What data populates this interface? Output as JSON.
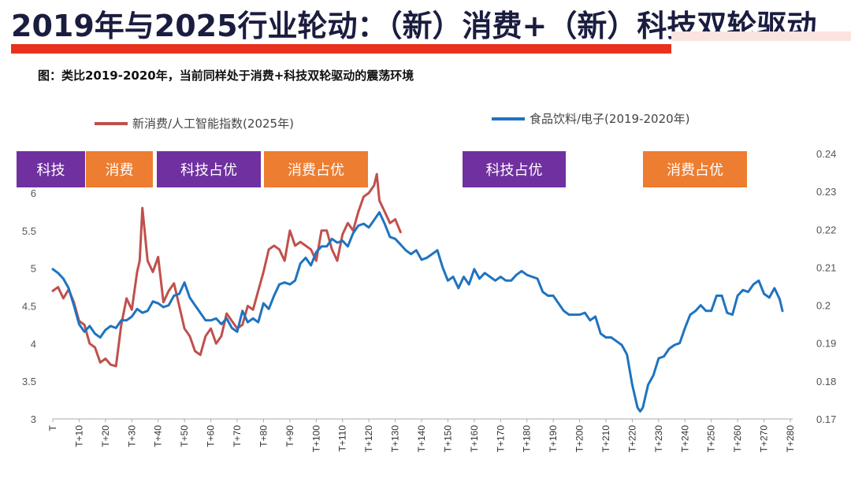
{
  "title": "2019年与2025行业轮动：（新）消费+（新）科技双轮驱动",
  "subtitle": "图：类比2019-2020年，当前同样处于消费+科技双轮驱动的震荡环境",
  "colors": {
    "series_new": "#c0504d",
    "series_old": "#1f73c0",
    "tech_badge": "#7030a0",
    "consumer_badge": "#ed7d31",
    "title_bar": "#e8321e"
  },
  "badges": [
    {
      "label": "科技",
      "kind": "tech"
    },
    {
      "label": "消费",
      "kind": "consumer"
    },
    {
      "label": "科技占优",
      "kind": "tech"
    },
    {
      "label": "消费占优",
      "kind": "consumer"
    },
    {
      "label": "科技占优",
      "kind": "tech"
    },
    {
      "label": "消费占优",
      "kind": "consumer"
    }
  ],
  "chart_data": {
    "type": "line",
    "title": "",
    "x_tick_labels": [
      "T",
      "T+10",
      "T+20",
      "T+30",
      "T+40",
      "T+50",
      "T+60",
      "T+70",
      "T+80",
      "T+90",
      "T+100",
      "T+110",
      "T+120",
      "T+130",
      "T+140",
      "T+150",
      "T+160",
      "T+170",
      "T+180",
      "T+190",
      "T+200",
      "T+210",
      "T+220",
      "T+230",
      "T+240",
      "T+250",
      "T+260",
      "T+270",
      "T+280"
    ],
    "xlim": [
      0,
      280
    ],
    "y_left": {
      "ticks": [
        "3",
        "3.5",
        "4",
        "4.5",
        "5",
        "5.5",
        "6"
      ],
      "ylim": [
        3,
        6.5
      ]
    },
    "y_right": {
      "ticks": [
        "0.17",
        "0.18",
        "0.19",
        "0.2",
        "0.21",
        "0.22",
        "0.23",
        "0.24"
      ],
      "ylim": [
        0.17,
        0.24
      ]
    },
    "legend": {
      "placement": "top"
    },
    "series": [
      {
        "name": "新消费/人工智能指数(2025年)",
        "axis": "left",
        "x": [
          0,
          2,
          4,
          6,
          8,
          10,
          12,
          14,
          16,
          18,
          20,
          22,
          24,
          26,
          28,
          30,
          32,
          33,
          34,
          36,
          38,
          40,
          42,
          44,
          46,
          48,
          50,
          52,
          54,
          56,
          58,
          60,
          62,
          64,
          66,
          68,
          70,
          72,
          74,
          76,
          78,
          80,
          82,
          84,
          86,
          88,
          90,
          92,
          94,
          96,
          98,
          100,
          102,
          104,
          106,
          108,
          110,
          112,
          114,
          116,
          118,
          120,
          122,
          123,
          124,
          126,
          128,
          130,
          132
        ],
        "y": [
          4.7,
          4.75,
          4.6,
          4.72,
          4.55,
          4.3,
          4.25,
          4.0,
          3.95,
          3.75,
          3.8,
          3.72,
          3.7,
          4.25,
          4.6,
          4.45,
          4.95,
          5.1,
          5.8,
          5.1,
          4.95,
          5.15,
          4.55,
          4.7,
          4.8,
          4.5,
          4.2,
          4.1,
          3.9,
          3.85,
          4.1,
          4.2,
          4.0,
          4.1,
          4.4,
          4.3,
          4.2,
          4.25,
          4.5,
          4.45,
          4.7,
          4.95,
          5.25,
          5.3,
          5.25,
          5.1,
          5.5,
          5.3,
          5.35,
          5.3,
          5.25,
          5.1,
          5.5,
          5.5,
          5.25,
          5.1,
          5.45,
          5.6,
          5.5,
          5.75,
          5.95,
          6.0,
          6.1,
          6.25,
          5.9,
          5.75,
          5.6,
          5.65,
          5.48
        ]
      },
      {
        "name": "食品饮料/电子(2019-2020年)",
        "axis": "right",
        "x": [
          0,
          2,
          4,
          6,
          8,
          10,
          12,
          14,
          16,
          18,
          20,
          22,
          24,
          26,
          28,
          30,
          32,
          34,
          36,
          38,
          40,
          42,
          44,
          46,
          48,
          50,
          52,
          54,
          56,
          58,
          60,
          62,
          64,
          66,
          68,
          70,
          72,
          74,
          76,
          78,
          80,
          82,
          84,
          86,
          88,
          90,
          92,
          94,
          96,
          98,
          100,
          102,
          104,
          106,
          108,
          110,
          112,
          114,
          116,
          118,
          120,
          122,
          124,
          126,
          128,
          130,
          132,
          134,
          136,
          138,
          140,
          142,
          144,
          146,
          148,
          150,
          152,
          154,
          156,
          158,
          160,
          162,
          164,
          166,
          168,
          170,
          172,
          174,
          176,
          178,
          180,
          182,
          184,
          186,
          188,
          190,
          192,
          194,
          196,
          198,
          200,
          202,
          204,
          206,
          208,
          210,
          212,
          214,
          216,
          218,
          220,
          222,
          223,
          224,
          226,
          228,
          230,
          232,
          234,
          236,
          238,
          240,
          242,
          244,
          246,
          248,
          250,
          252,
          254,
          256,
          258,
          260,
          262,
          264,
          266,
          268,
          270,
          272,
          274,
          276,
          277
        ],
        "y": [
          0.2095,
          0.2085,
          0.207,
          0.2045,
          0.2,
          0.195,
          0.193,
          0.1945,
          0.1925,
          0.1915,
          0.1935,
          0.1945,
          0.194,
          0.196,
          0.196,
          0.197,
          0.199,
          0.198,
          0.1985,
          0.201,
          0.2005,
          0.1995,
          0.2,
          0.2025,
          0.203,
          0.206,
          0.202,
          0.2,
          0.198,
          0.196,
          0.196,
          0.1965,
          0.195,
          0.1965,
          0.194,
          0.193,
          0.1985,
          0.1955,
          0.1965,
          0.1955,
          0.2005,
          0.199,
          0.2025,
          0.2055,
          0.206,
          0.2055,
          0.2065,
          0.211,
          0.2125,
          0.2105,
          0.214,
          0.2155,
          0.2155,
          0.2175,
          0.2165,
          0.217,
          0.2155,
          0.219,
          0.221,
          0.2215,
          0.2205,
          0.2225,
          0.2245,
          0.2215,
          0.218,
          0.2175,
          0.216,
          0.2145,
          0.2135,
          0.2145,
          0.212,
          0.2125,
          0.2135,
          0.2145,
          0.21,
          0.2065,
          0.2075,
          0.2045,
          0.2075,
          0.2055,
          0.2095,
          0.207,
          0.2085,
          0.2075,
          0.2065,
          0.2075,
          0.2065,
          0.2065,
          0.208,
          0.209,
          0.208,
          0.2075,
          0.207,
          0.2035,
          0.2025,
          0.2025,
          0.2005,
          0.1985,
          0.1975,
          0.1975,
          0.1975,
          0.198,
          0.196,
          0.197,
          0.1925,
          0.1915,
          0.1915,
          0.1905,
          0.1895,
          0.187,
          0.179,
          0.173,
          0.172,
          0.173,
          0.179,
          0.1815,
          0.186,
          0.1865,
          0.1885,
          0.1895,
          0.19,
          0.194,
          0.1975,
          0.1985,
          0.2,
          0.1985,
          0.1985,
          0.2025,
          0.2025,
          0.198,
          0.1975,
          0.2025,
          0.204,
          0.2035,
          0.2055,
          0.2065,
          0.203,
          0.202,
          0.2045,
          0.2015,
          0.1985
        ]
      }
    ]
  }
}
